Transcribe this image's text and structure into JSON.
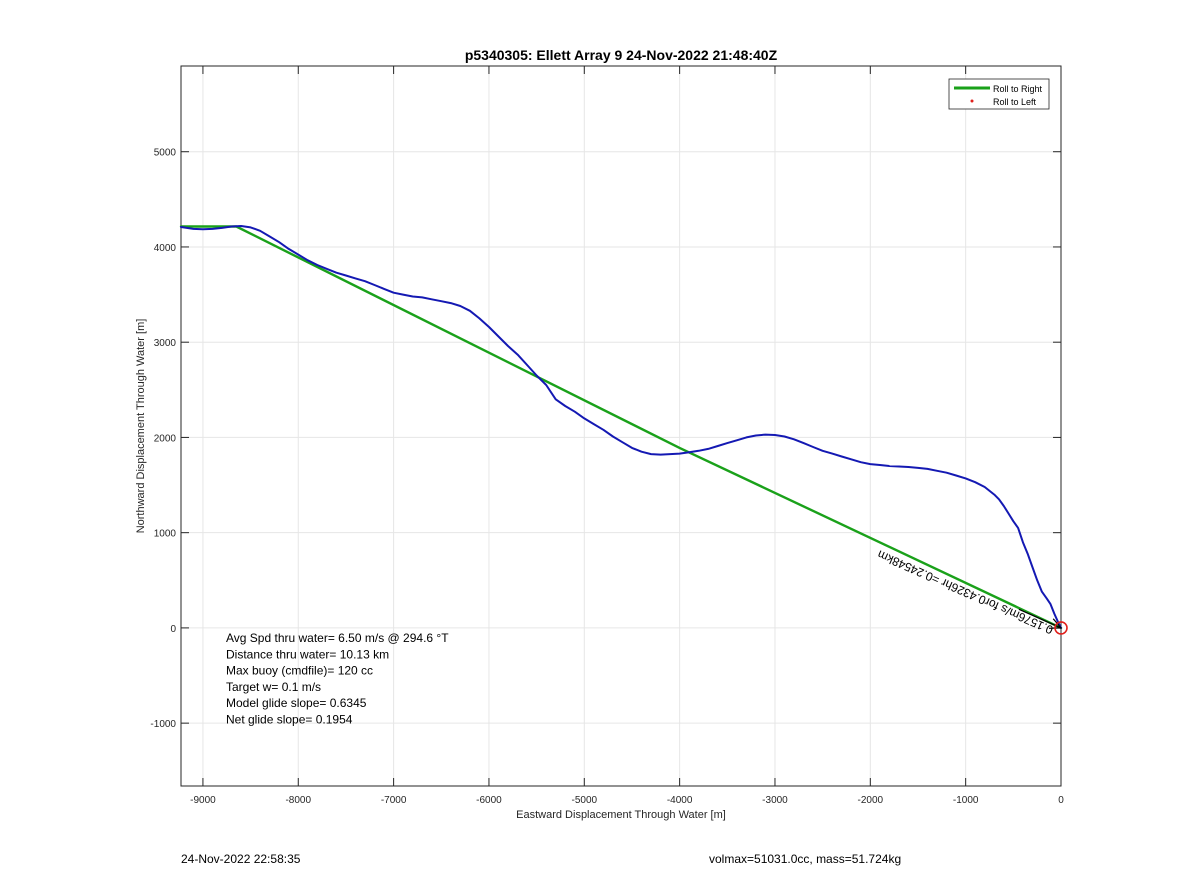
{
  "chart_data": {
    "type": "line",
    "title": "p5340305: Ellett Array 9 24-Nov-2022 21:48:40Z",
    "xlabel": "Eastward Displacement Through Water [m]",
    "ylabel": "Northward Displacement Through Water [m]",
    "xlim": [
      -9230,
      0
    ],
    "ylim": [
      -1660,
      5900
    ],
    "xticks": [
      -9000,
      -8000,
      -7000,
      -6000,
      -5000,
      -4000,
      -3000,
      -2000,
      -1000,
      0
    ],
    "yticks": [
      -1000,
      0,
      1000,
      2000,
      3000,
      4000,
      5000
    ],
    "xtick_labels": [
      "-9000",
      "-8000",
      "-7000",
      "-6000",
      "-5000",
      "-4000",
      "-3000",
      "-2000",
      "-1000",
      "0"
    ],
    "ytick_labels": [
      "-1000",
      "0",
      "1000",
      "2000",
      "3000",
      "4000",
      "5000"
    ],
    "grid": true,
    "legend_position": "top-right",
    "legend": [
      {
        "label": "Roll to Right",
        "color": "#1aa11a",
        "style": "line"
      },
      {
        "label": "Roll to Left",
        "color": "#e0201c",
        "style": "dot"
      }
    ],
    "series": [
      {
        "name": "Roll to Right",
        "color": "#1aa11a",
        "x": [
          0,
          -4000,
          -8650,
          -9230
        ],
        "y": [
          0,
          1890,
          4215,
          4215
        ]
      },
      {
        "color": "#1419b3",
        "x": [
          0,
          -30,
          -70,
          -110,
          -150,
          -200,
          -250,
          -300,
          -350,
          -400,
          -450,
          -500,
          -550,
          -600,
          -650,
          -700,
          -800,
          -900,
          -1000,
          -1100,
          -1200,
          -1300,
          -1400,
          -1500,
          -1600,
          -1700,
          -1800,
          -1900,
          -2000,
          -2100,
          -2200,
          -2300,
          -2400,
          -2500,
          -2600,
          -2700,
          -2800,
          -2900,
          -3000,
          -3100,
          -3200,
          -3300,
          -3400,
          -3500,
          -3600,
          -3700,
          -3800,
          -3900,
          -4000,
          -4100,
          -4200,
          -4300,
          -4400,
          -4500,
          -4600,
          -4700,
          -4800,
          -4900,
          -5000,
          -5100,
          -5200,
          -5300,
          -5400,
          -5500,
          -5600,
          -5700,
          -5800,
          -5900,
          -6000,
          -6100,
          -6200,
          -6300,
          -6400,
          -6500,
          -6600,
          -6700,
          -6800,
          -6900,
          -7000,
          -7100,
          -7200,
          -7300,
          -7400,
          -7500,
          -7600,
          -7700,
          -7800,
          -7900,
          -8000,
          -8100,
          -8200,
          -8300,
          -8400,
          -8500,
          -8600,
          -8700,
          -8800,
          -8900,
          -9000,
          -9100,
          -9230
        ],
        "y": [
          0,
          60,
          150,
          250,
          310,
          380,
          500,
          640,
          780,
          900,
          1050,
          1120,
          1200,
          1280,
          1350,
          1400,
          1480,
          1530,
          1570,
          1600,
          1630,
          1650,
          1670,
          1680,
          1690,
          1695,
          1700,
          1710,
          1720,
          1740,
          1770,
          1800,
          1830,
          1860,
          1900,
          1940,
          1980,
          2010,
          2025,
          2030,
          2020,
          2000,
          1970,
          1940,
          1910,
          1880,
          1860,
          1845,
          1830,
          1825,
          1820,
          1825,
          1850,
          1890,
          1950,
          2010,
          2080,
          2140,
          2200,
          2270,
          2330,
          2400,
          2550,
          2650,
          2760,
          2870,
          2960,
          3060,
          3160,
          3250,
          3330,
          3380,
          3410,
          3430,
          3450,
          3470,
          3480,
          3500,
          3520,
          3560,
          3600,
          3640,
          3670,
          3700,
          3730,
          3770,
          3810,
          3860,
          3920,
          3980,
          4050,
          4110,
          4170,
          4205,
          4220,
          4215,
          4200,
          4190,
          4185,
          4190,
          4210
        ]
      }
    ],
    "annotations": [
      {
        "text": "Avg Spd thru water=  6.50 m/s @ 294.6 °T"
      },
      {
        "text": "Distance thru water= 10.13 km"
      },
      {
        "text": "Max buoy (cmdfile)= 120 cc"
      },
      {
        "text": "Target w= 0.1 m/s"
      },
      {
        "text": "Model glide slope= 0.6345"
      },
      {
        "text": "Net glide slope= 0.1954"
      }
    ],
    "current_label": "0.1576m/s for0.4326hr =0.24548km",
    "current_vector": {
      "x": [
        -1950,
        0
      ],
      "y": [
        860,
        0
      ]
    }
  },
  "footer": {
    "timestamp": "24-Nov-2022 22:58:35",
    "info": "volmax=51031.0cc, mass=51.724kg"
  }
}
